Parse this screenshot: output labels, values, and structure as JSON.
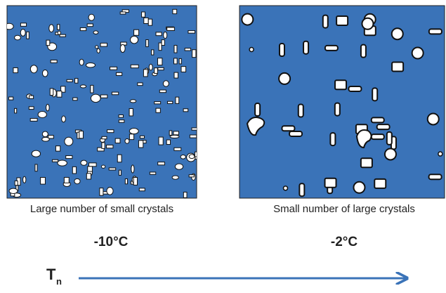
{
  "panels": [
    {
      "caption": "Large number of small crystals",
      "temperature": "-10°C"
    },
    {
      "caption": "Small number of large crystals",
      "temperature": "-2°C"
    }
  ],
  "axis": {
    "symbol": "T",
    "subscript": "n"
  }
}
